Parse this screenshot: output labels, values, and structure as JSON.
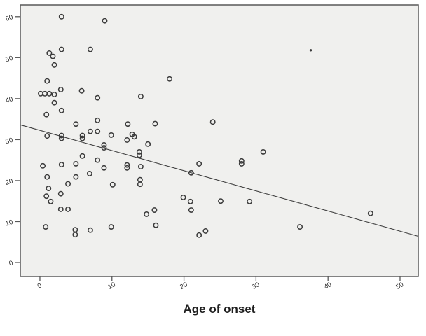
{
  "chart_data": {
    "type": "scatter",
    "title": "",
    "xlabel": "Age of onset",
    "ylabel": "",
    "x_ticks": [
      0,
      10,
      20,
      30,
      40,
      50
    ],
    "y_ticks": [
      0,
      10,
      20,
      30,
      40,
      50,
      60
    ],
    "xlim": [
      -2.72,
      52.53
    ],
    "ylim": [
      -3.42,
      62.87
    ],
    "grid": false,
    "legend": "none",
    "marker": "open-circle",
    "points": [
      [
        3,
        60
      ],
      [
        9,
        59
      ],
      [
        3,
        52
      ],
      [
        7,
        52
      ],
      [
        1.3,
        51.1
      ],
      [
        1.8,
        50.3
      ],
      [
        2,
        48.2
      ],
      [
        1,
        44.3
      ],
      [
        18,
        44.8
      ],
      [
        2.9,
        42.2
      ],
      [
        5.8,
        41.9
      ],
      [
        0.1,
        41.2
      ],
      [
        0.7,
        41.2
      ],
      [
        1.3,
        41.2
      ],
      [
        2,
        41
      ],
      [
        8,
        40.2
      ],
      [
        14,
        40.5
      ],
      [
        2,
        39
      ],
      [
        3,
        37.1
      ],
      [
        0.9,
        36.1
      ],
      [
        5,
        33.8
      ],
      [
        8,
        34.7
      ],
      [
        12.2,
        33.8
      ],
      [
        16,
        33.9
      ],
      [
        24,
        34.3
      ],
      [
        1,
        30.9
      ],
      [
        3,
        31
      ],
      [
        3,
        30.3
      ],
      [
        5.9,
        31
      ],
      [
        5.9,
        30.3
      ],
      [
        7,
        32
      ],
      [
        8,
        32
      ],
      [
        9.9,
        31.1
      ],
      [
        8.9,
        28.7
      ],
      [
        8.9,
        28
      ],
      [
        12.1,
        29.9
      ],
      [
        12.8,
        31.3
      ],
      [
        13.1,
        30.7
      ],
      [
        15,
        28.9
      ],
      [
        13.8,
        27
      ],
      [
        13.8,
        26.2
      ],
      [
        5.9,
        26
      ],
      [
        0.4,
        23.6
      ],
      [
        3,
        23.9
      ],
      [
        5,
        24.1
      ],
      [
        8,
        25
      ],
      [
        8.9,
        23.1
      ],
      [
        12.1,
        23.8
      ],
      [
        12.1,
        23.1
      ],
      [
        14,
        23.4
      ],
      [
        22.1,
        24.1
      ],
      [
        28,
        24.8
      ],
      [
        28,
        24.1
      ],
      [
        21,
        21.9
      ],
      [
        31,
        27
      ],
      [
        1,
        20.9
      ],
      [
        5,
        20.9
      ],
      [
        6.9,
        21.7
      ],
      [
        3.9,
        19.2
      ],
      [
        10.1,
        19
      ],
      [
        13.9,
        20.2
      ],
      [
        13.9,
        19.1
      ],
      [
        1.2,
        18.1
      ],
      [
        2.9,
        16.8
      ],
      [
        0.9,
        16.2
      ],
      [
        1.5,
        14.9
      ],
      [
        2.9,
        13
      ],
      [
        3.9,
        13
      ],
      [
        14.8,
        11.8
      ],
      [
        15.9,
        12.8
      ],
      [
        19.9,
        15.9
      ],
      [
        20.9,
        14.9
      ],
      [
        21,
        12.8
      ],
      [
        25.1,
        15
      ],
      [
        29.1,
        14.9
      ],
      [
        0.8,
        8.7
      ],
      [
        4.9,
        8
      ],
      [
        4.9,
        6.8
      ],
      [
        7,
        7.9
      ],
      [
        9.9,
        8.7
      ],
      [
        16.1,
        9.1
      ],
      [
        23,
        7.7
      ],
      [
        22.1,
        6.7
      ],
      [
        36.1,
        8.7
      ],
      [
        45.9,
        12
      ]
    ],
    "small_dot_point": [
      37.6,
      51.8
    ],
    "trend_line": {
      "x1": -2.72,
      "y1": 33.6,
      "x2": 52.53,
      "y2": 6.4
    },
    "colors": {
      "plot_bg": "#f0f0ee",
      "frame": "#585858",
      "marker": "#3a3a3a",
      "trend": "#3f3f3f",
      "tick_text": "#2e2e2e",
      "title_text": "#1f1f1f"
    }
  }
}
